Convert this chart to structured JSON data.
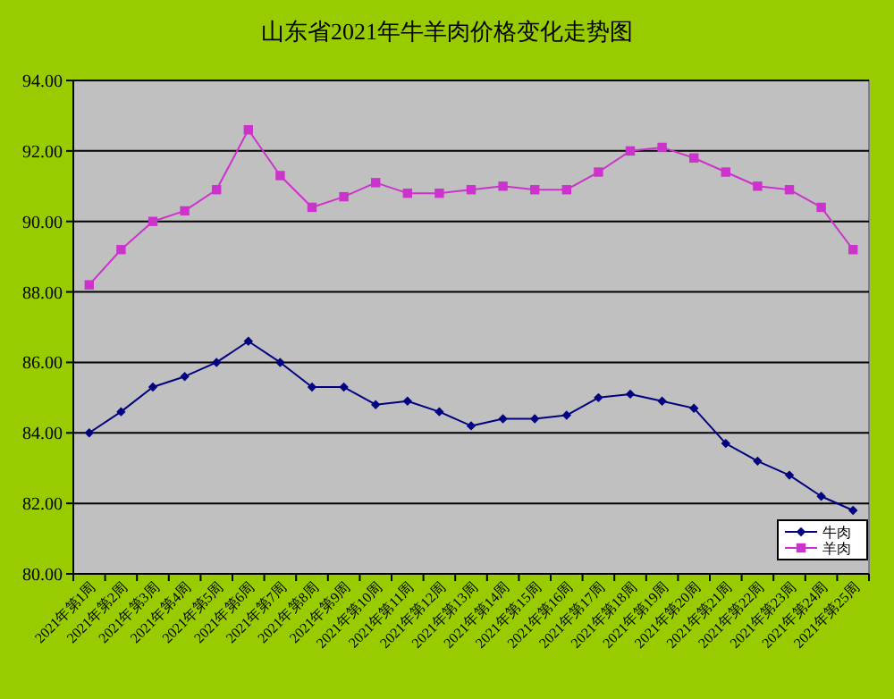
{
  "chart_data": {
    "type": "line",
    "title": "山东省2021年牛羊肉价格变化走势图",
    "categories": [
      "2021年第1周",
      "2021年第2周",
      "2021年第3周",
      "2021年第4周",
      "2021年第5周",
      "2021年第6周",
      "2021年第7周",
      "2021年第8周",
      "2021年第9周",
      "2021年第10周",
      "2021年第11周",
      "2021年第12周",
      "2021年第13周",
      "2021年第14周",
      "2021年第15周",
      "2021年第16周",
      "2021年第17周",
      "2021年第18周",
      "2021年第19周",
      "2021年第20周",
      "2021年第21周",
      "2021年第22周",
      "2021年第23周",
      "2021年第24周",
      "2021年第25周"
    ],
    "series": [
      {
        "name": "牛肉",
        "color": "#000080",
        "marker": "diamond",
        "values": [
          84.0,
          84.6,
          85.3,
          85.6,
          86.0,
          86.6,
          86.0,
          85.3,
          85.3,
          84.8,
          84.9,
          84.6,
          84.2,
          84.4,
          84.4,
          84.5,
          85.0,
          85.1,
          84.9,
          84.7,
          83.7,
          83.2,
          82.8,
          82.2,
          81.8
        ]
      },
      {
        "name": "羊肉",
        "color": "#cc33cc",
        "marker": "square",
        "values": [
          88.2,
          89.2,
          90.0,
          90.3,
          90.9,
          92.6,
          91.3,
          90.4,
          90.7,
          91.1,
          90.8,
          90.8,
          90.9,
          91.0,
          90.9,
          90.9,
          91.4,
          92.0,
          92.1,
          91.8,
          91.4,
          91.0,
          90.9,
          90.4,
          89.2
        ]
      }
    ],
    "ylim": [
      80,
      94
    ],
    "yticks": [
      {
        "value": 80,
        "label": "80.00"
      },
      {
        "value": 82,
        "label": "82.00"
      },
      {
        "value": 84,
        "label": "84.00"
      },
      {
        "value": 86,
        "label": "86.00"
      },
      {
        "value": 88,
        "label": "88.00"
      },
      {
        "value": 90,
        "label": "90.00"
      },
      {
        "value": 92,
        "label": "92.00"
      },
      {
        "value": 94,
        "label": "94.00"
      }
    ],
    "grid": "y",
    "legend": "bottom right"
  }
}
